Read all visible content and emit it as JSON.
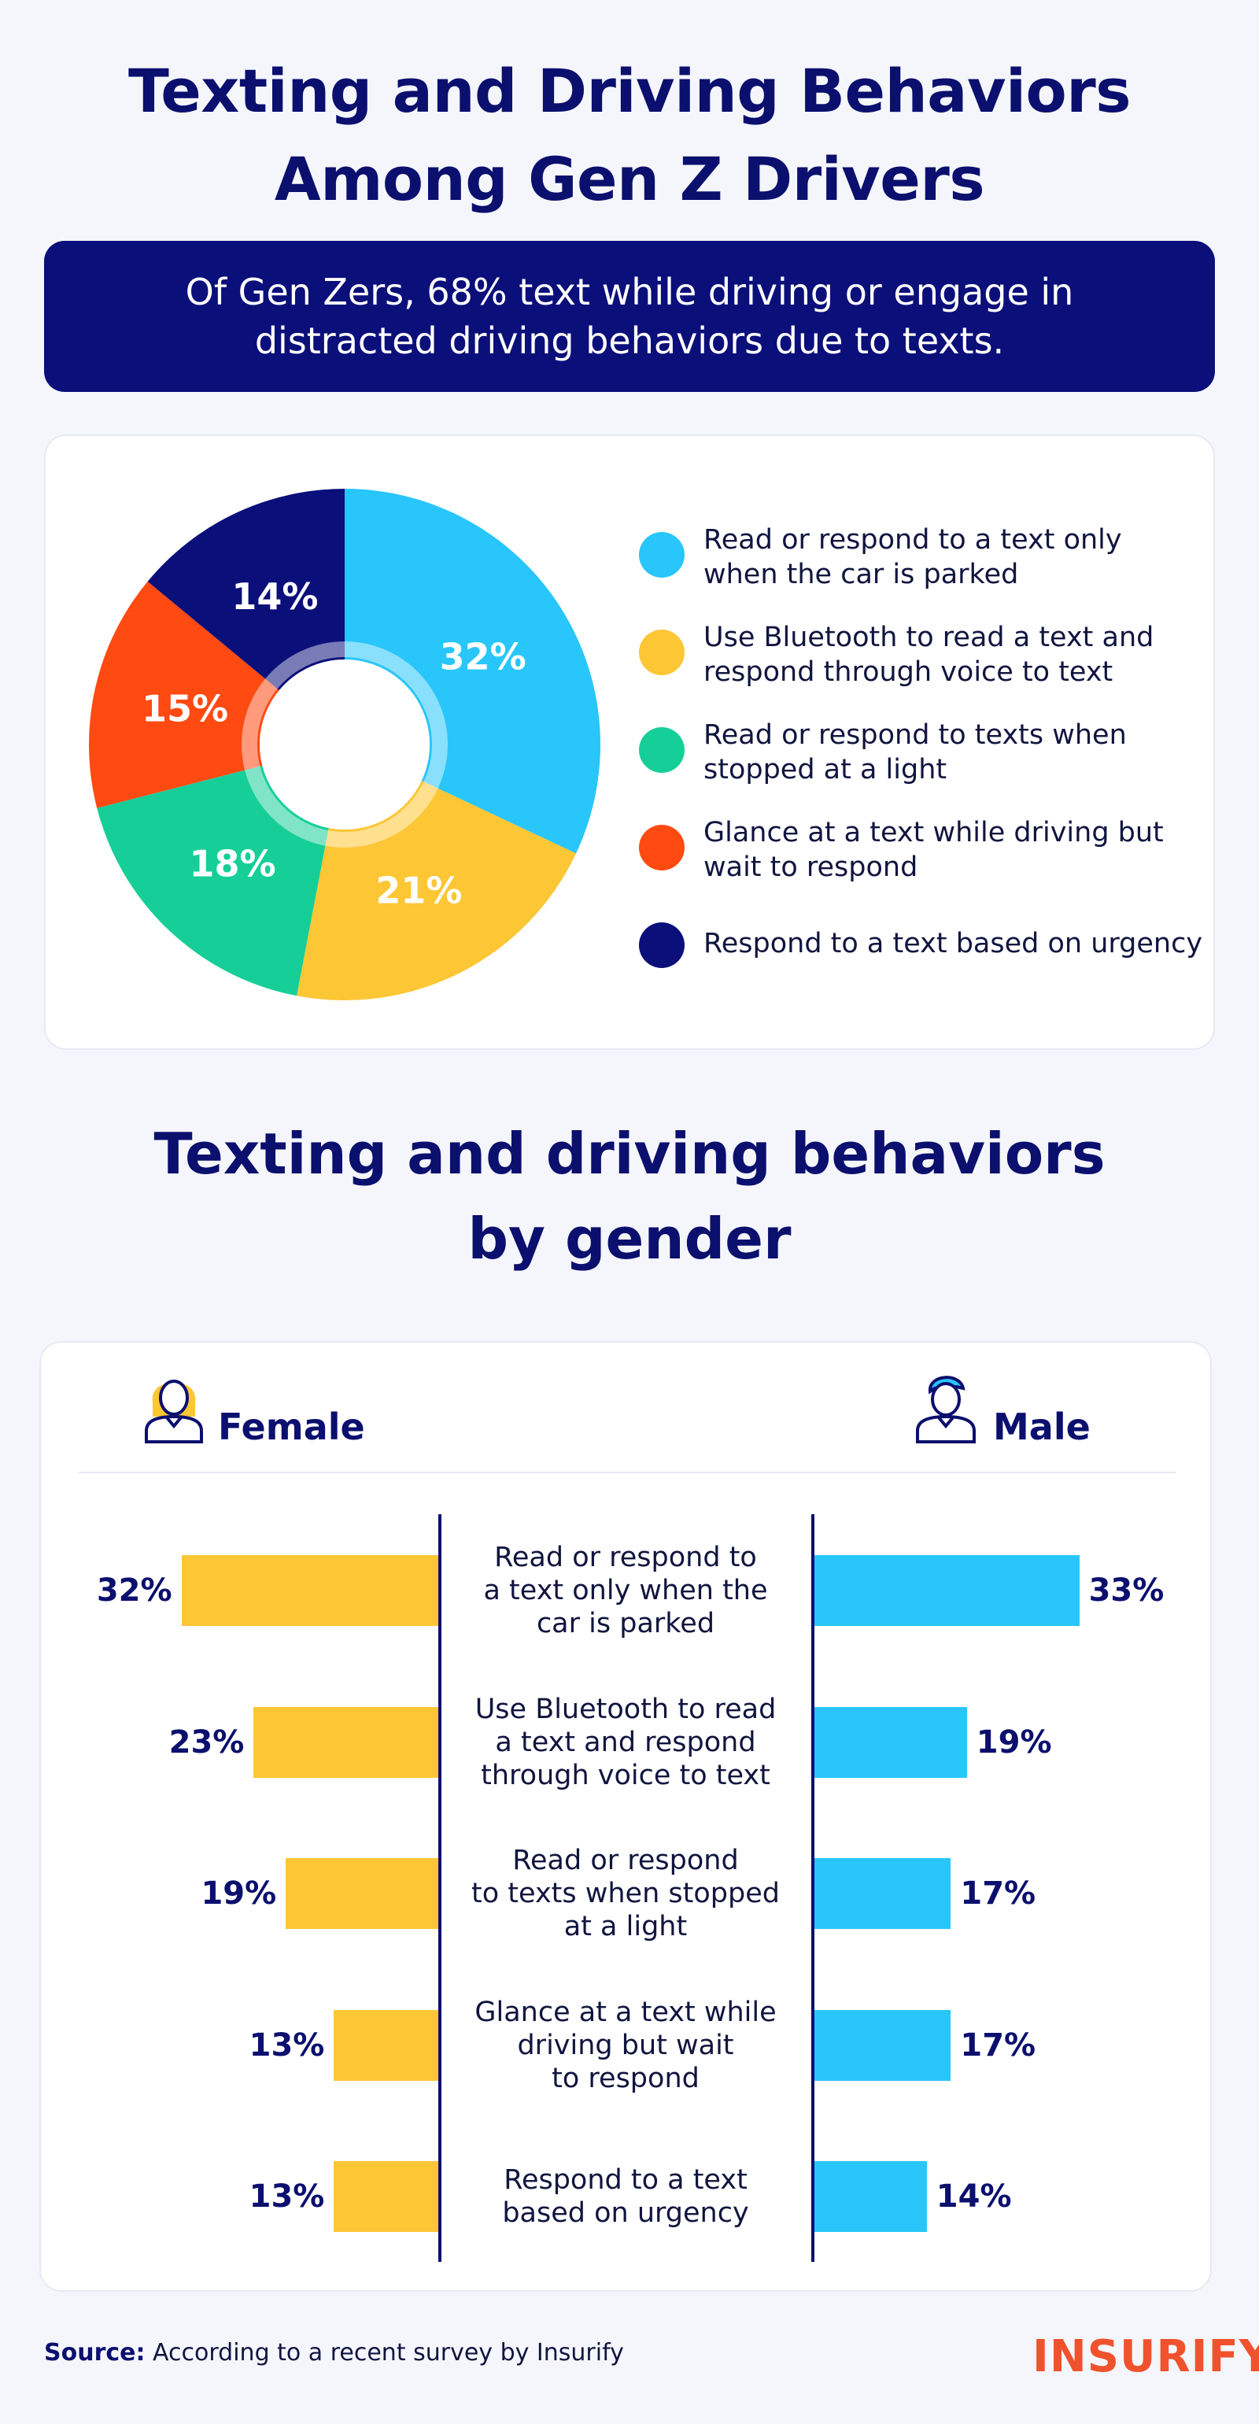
{
  "title_line1": "Texting and Driving Behaviors",
  "title_line2": "Among Gen Z Drivers",
  "banner_line1": "Of Gen Zers, 68% text while driving or engage in",
  "banner_line2": "distracted driving behaviors due to texts.",
  "subtitle_line1": "Texting and driving behaviors",
  "subtitle_line2": "by gender",
  "female_label": "Female",
  "male_label": "Male",
  "source_prefix": "Source:",
  "source_text": " According to a recent survey by Insurify",
  "logo_text": "INSURIFY",
  "colors": {
    "navy": "#0b0f6e",
    "blue": "#28c6fa",
    "yellow": "#fdc634",
    "green": "#16cf98",
    "red": "#ff4a12",
    "dark": "#0b0f6e"
  },
  "chart_data": [
    {
      "type": "pie",
      "labels": [
        "Read or respond to a text only when the car is parked",
        "Use Bluetooth to read a text and respond through voice to text",
        "Read or respond to texts when stopped at a light",
        "Glance at a text while driving but wait to respond",
        "Respond to a text based on urgency"
      ],
      "legend_lines": [
        [
          "Read or respond to a text only",
          "when the car is parked"
        ],
        [
          "Use Bluetooth to read a text and",
          "respond through voice to text"
        ],
        [
          "Read or respond to texts when",
          "stopped at a light"
        ],
        [
          "Glance at a text while driving but",
          "wait to respond"
        ],
        [
          "Respond to a text based on urgency"
        ]
      ],
      "values": [
        32,
        21,
        18,
        15,
        14
      ],
      "value_labels": [
        "32%",
        "21%",
        "18%",
        "15%",
        "14%"
      ],
      "colors": [
        "#28c6fa",
        "#fdc634",
        "#16cf98",
        "#ff4a12",
        "#0b0f7a"
      ],
      "legend_position": "right"
    },
    {
      "type": "bar",
      "orientation": "horizontal",
      "categories": [
        "Read or respond to a text only when the car is parked",
        "Use Bluetooth to read a text and respond through voice to text",
        "Read or respond to texts when stopped at a light",
        "Glance at a text while driving but wait to respond",
        "Respond to a text based on urgency"
      ],
      "category_lines": [
        [
          "Read or respond to",
          "a text only when the",
          "car is parked"
        ],
        [
          "Use Bluetooth to read",
          "a text and respond",
          "through voice to text"
        ],
        [
          "Read or respond",
          "to texts when stopped",
          "at a light"
        ],
        [
          "Glance at a text while",
          "driving but wait",
          "to respond"
        ],
        [
          "Respond to a text",
          "based on urgency"
        ]
      ],
      "series": [
        {
          "name": "Female",
          "values": [
            32,
            23,
            19,
            13,
            13
          ],
          "labels": [
            "32%",
            "23%",
            "19%",
            "13%",
            "13%"
          ],
          "color": "#fdc634"
        },
        {
          "name": "Male",
          "values": [
            33,
            19,
            17,
            17,
            14
          ],
          "labels": [
            "33%",
            "19%",
            "17%",
            "17%",
            "14%"
          ],
          "color": "#28c6fa"
        }
      ]
    }
  ]
}
